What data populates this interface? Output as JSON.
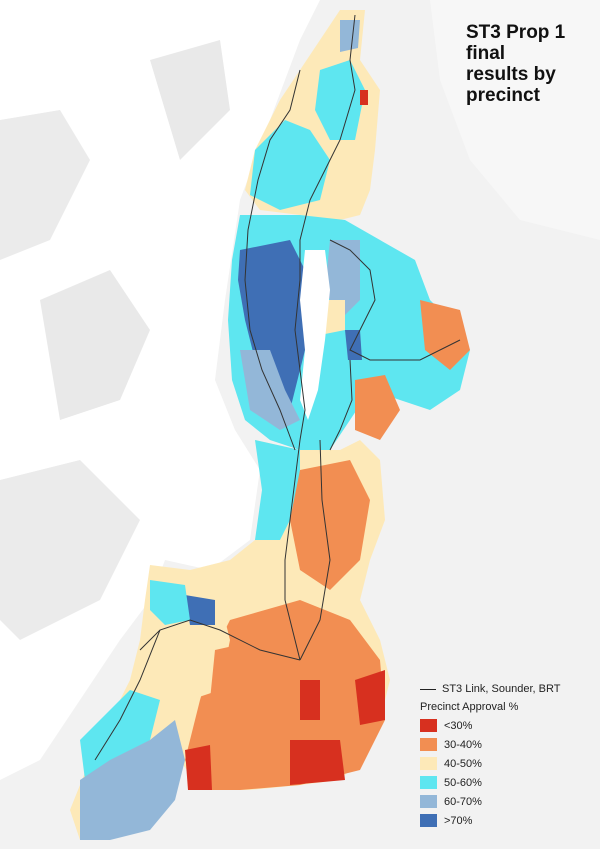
{
  "title": "ST3 Prop 1\nfinal\nresults by\nprecinct",
  "legend": {
    "line_label": "ST3 Link, Sounder, BRT",
    "heading": "Precinct Approval %",
    "items": [
      {
        "label": "<30%",
        "color": "#d7301f"
      },
      {
        "label": "30-40%",
        "color": "#f28e52"
      },
      {
        "label": "40-50%",
        "color": "#fde9b8"
      },
      {
        "label": "50-60%",
        "color": "#5ee6f0"
      },
      {
        "label": "60-70%",
        "color": "#93b7d8"
      },
      {
        "label": ">70%",
        "color": "#3f6fb5"
      }
    ]
  },
  "colors": {
    "water": "#ffffff",
    "land": "#f2f2f2",
    "transit_line": "#333333"
  }
}
